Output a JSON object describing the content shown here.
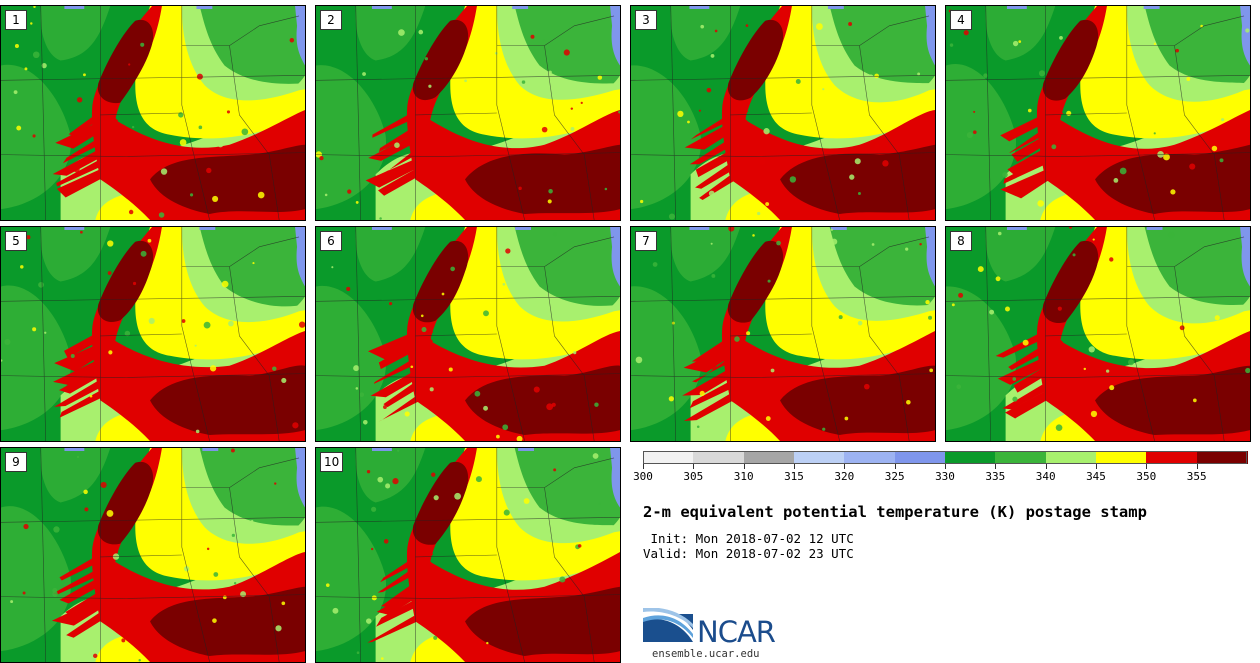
{
  "panels": [
    {
      "label": "1"
    },
    {
      "label": "2"
    },
    {
      "label": "3"
    },
    {
      "label": "4"
    },
    {
      "label": "5"
    },
    {
      "label": "6"
    },
    {
      "label": "7"
    },
    {
      "label": "8"
    },
    {
      "label": "9"
    },
    {
      "label": "10"
    }
  ],
  "colorbar": {
    "ticks": [
      "300",
      "305",
      "310",
      "315",
      "320",
      "325",
      "330",
      "335",
      "340",
      "345",
      "350",
      "355"
    ],
    "colors": [
      "#f2f2f2",
      "#d9d9d9",
      "#a6a6a6",
      "#bcd0f5",
      "#9db3f2",
      "#7f96ec",
      "#0a9a2a",
      "#3bb43a",
      "#a8f06e",
      "#ffff00",
      "#e00000",
      "#7a0000"
    ]
  },
  "title": "2-m equivalent potential temperature (K) postage stamp",
  "init": " Init: Mon 2018-07-02 12 UTC",
  "valid": "Valid: Mon 2018-07-02 23 UTC",
  "logo": {
    "name": "NCAR",
    "url": "ensemble.ucar.edu"
  }
}
